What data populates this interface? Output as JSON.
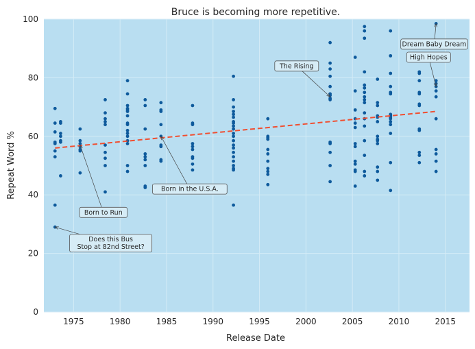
{
  "chart_data": {
    "type": "scatter",
    "title": "Bruce is becoming more repetitive.",
    "xlabel": "Release Date",
    "ylabel": "Repeat Word %",
    "xlim": [
      1971.8,
      2017.6
    ],
    "ylim": [
      0,
      100
    ],
    "xticks": [
      1975,
      1980,
      1985,
      1990,
      1995,
      2000,
      2005,
      2010,
      2015
    ],
    "yticks": [
      0,
      20,
      40,
      60,
      80,
      100
    ],
    "grid": true,
    "colors": {
      "background": "#b9def1",
      "grid": "#d4ebf6",
      "points": "#0e5a9c",
      "trend": "#f04e30"
    },
    "trend_line": {
      "x": [
        1973.0,
        2014.0
      ],
      "y": [
        56.0,
        68.5
      ],
      "style": "dashed"
    },
    "series": [
      {
        "points": [
          [
            1973.0,
            69.5
          ],
          [
            1973.0,
            64.5
          ],
          [
            1973.0,
            61.5
          ],
          [
            1973.0,
            58.0
          ],
          [
            1973.0,
            57.5
          ],
          [
            1973.0,
            55.0
          ],
          [
            1973.0,
            53.0
          ],
          [
            1973.0,
            36.5
          ],
          [
            1973.0,
            29.0
          ],
          [
            1973.6,
            65.0
          ],
          [
            1973.6,
            64.5
          ],
          [
            1973.6,
            61.0
          ],
          [
            1973.6,
            60.0
          ],
          [
            1973.6,
            58.5
          ],
          [
            1973.6,
            58.0
          ],
          [
            1973.6,
            46.5
          ],
          [
            1975.7,
            62.5
          ],
          [
            1975.7,
            58.5
          ],
          [
            1975.7,
            57.5
          ],
          [
            1975.7,
            56.5
          ],
          [
            1975.7,
            55.5
          ],
          [
            1975.7,
            55.0
          ],
          [
            1975.7,
            47.5
          ],
          [
            1978.4,
            72.5
          ],
          [
            1978.4,
            68.0
          ],
          [
            1978.4,
            66.0
          ],
          [
            1978.4,
            65.0
          ],
          [
            1978.4,
            64.0
          ],
          [
            1978.4,
            57.0
          ],
          [
            1978.4,
            54.5
          ],
          [
            1978.4,
            52.5
          ],
          [
            1978.4,
            50.0
          ],
          [
            1978.4,
            41.0
          ],
          [
            1980.8,
            79.0
          ],
          [
            1980.8,
            74.5
          ],
          [
            1980.8,
            70.5
          ],
          [
            1980.8,
            69.5
          ],
          [
            1980.8,
            69.0
          ],
          [
            1980.8,
            68.5
          ],
          [
            1980.8,
            67.0
          ],
          [
            1980.8,
            64.5
          ],
          [
            1980.8,
            64.0
          ],
          [
            1980.8,
            62.0
          ],
          [
            1980.8,
            61.0
          ],
          [
            1980.8,
            60.0
          ],
          [
            1980.8,
            58.5
          ],
          [
            1980.8,
            57.5
          ],
          [
            1980.8,
            50.0
          ],
          [
            1980.8,
            48.0
          ],
          [
            1982.7,
            72.5
          ],
          [
            1982.7,
            70.5
          ],
          [
            1982.7,
            62.5
          ],
          [
            1982.7,
            54.0
          ],
          [
            1982.7,
            53.0
          ],
          [
            1982.7,
            52.0
          ],
          [
            1982.7,
            50.0
          ],
          [
            1982.7,
            43.0
          ],
          [
            1982.7,
            42.5
          ],
          [
            1984.4,
            71.5
          ],
          [
            1984.4,
            69.0
          ],
          [
            1984.4,
            68.5
          ],
          [
            1984.4,
            64.0
          ],
          [
            1984.4,
            60.0
          ],
          [
            1984.4,
            57.0
          ],
          [
            1984.4,
            56.5
          ],
          [
            1984.4,
            52.0
          ],
          [
            1984.4,
            51.5
          ],
          [
            1987.8,
            70.5
          ],
          [
            1987.8,
            64.5
          ],
          [
            1987.8,
            64.0
          ],
          [
            1987.8,
            57.5
          ],
          [
            1987.8,
            56.5
          ],
          [
            1987.8,
            55.5
          ],
          [
            1987.8,
            53.0
          ],
          [
            1987.8,
            52.5
          ],
          [
            1987.8,
            50.5
          ],
          [
            1987.8,
            48.5
          ],
          [
            1992.2,
            80.5
          ],
          [
            1992.2,
            72.5
          ],
          [
            1992.2,
            70.0
          ],
          [
            1992.2,
            68.5
          ],
          [
            1992.2,
            67.5
          ],
          [
            1992.2,
            66.5
          ],
          [
            1992.2,
            65.0
          ],
          [
            1992.2,
            64.5
          ],
          [
            1992.2,
            63.5
          ],
          [
            1992.2,
            62.5
          ],
          [
            1992.2,
            61.0
          ],
          [
            1992.2,
            60.0
          ],
          [
            1992.2,
            58.5
          ],
          [
            1992.2,
            57.0
          ],
          [
            1992.2,
            56.0
          ],
          [
            1992.2,
            54.5
          ],
          [
            1992.2,
            53.0
          ],
          [
            1992.2,
            51.5
          ],
          [
            1992.2,
            50.0
          ],
          [
            1992.2,
            49.0
          ],
          [
            1992.2,
            48.5
          ],
          [
            1992.2,
            36.5
          ],
          [
            1995.9,
            66.0
          ],
          [
            1995.9,
            60.0
          ],
          [
            1995.9,
            59.5
          ],
          [
            1995.9,
            59.0
          ],
          [
            1995.9,
            55.5
          ],
          [
            1995.9,
            54.0
          ],
          [
            1995.9,
            51.5
          ],
          [
            1995.9,
            49.0
          ],
          [
            1995.9,
            48.0
          ],
          [
            1995.9,
            47.0
          ],
          [
            1995.9,
            43.5
          ],
          [
            2002.6,
            92.0
          ],
          [
            2002.6,
            85.0
          ],
          [
            2002.6,
            83.0
          ],
          [
            2002.6,
            80.5
          ],
          [
            2002.6,
            77.0
          ],
          [
            2002.6,
            74.5
          ],
          [
            2002.6,
            74.0
          ],
          [
            2002.6,
            73.0
          ],
          [
            2002.6,
            72.5
          ],
          [
            2002.6,
            58.0
          ],
          [
            2002.6,
            57.5
          ],
          [
            2002.6,
            54.5
          ],
          [
            2002.6,
            50.0
          ],
          [
            2002.6,
            44.5
          ],
          [
            2005.3,
            87.0
          ],
          [
            2005.3,
            75.5
          ],
          [
            2005.3,
            69.0
          ],
          [
            2005.3,
            66.0
          ],
          [
            2005.3,
            64.5
          ],
          [
            2005.3,
            63.0
          ],
          [
            2005.3,
            57.5
          ],
          [
            2005.3,
            56.5
          ],
          [
            2005.3,
            51.5
          ],
          [
            2005.3,
            50.5
          ],
          [
            2005.3,
            48.5
          ],
          [
            2005.3,
            48.0
          ],
          [
            2005.3,
            43.0
          ],
          [
            2006.3,
            97.5
          ],
          [
            2006.3,
            96.0
          ],
          [
            2006.3,
            93.5
          ],
          [
            2006.3,
            82.0
          ],
          [
            2006.3,
            77.5
          ],
          [
            2006.3,
            76.5
          ],
          [
            2006.3,
            75.0
          ],
          [
            2006.3,
            73.5
          ],
          [
            2006.3,
            72.5
          ],
          [
            2006.3,
            71.5
          ],
          [
            2006.3,
            68.0
          ],
          [
            2006.3,
            66.0
          ],
          [
            2006.3,
            63.5
          ],
          [
            2006.3,
            58.5
          ],
          [
            2006.3,
            53.5
          ],
          [
            2006.3,
            48.0
          ],
          [
            2006.3,
            46.5
          ],
          [
            2007.7,
            79.5
          ],
          [
            2007.7,
            71.5
          ],
          [
            2007.7,
            70.5
          ],
          [
            2007.7,
            67.0
          ],
          [
            2007.7,
            66.5
          ],
          [
            2007.7,
            65.0
          ],
          [
            2007.7,
            60.0
          ],
          [
            2007.7,
            59.0
          ],
          [
            2007.7,
            58.5
          ],
          [
            2007.7,
            57.5
          ],
          [
            2007.7,
            49.5
          ],
          [
            2007.7,
            48.0
          ],
          [
            2007.7,
            45.0
          ],
          [
            2009.1,
            96.0
          ],
          [
            2009.1,
            87.5
          ],
          [
            2009.1,
            81.5
          ],
          [
            2009.1,
            77.0
          ],
          [
            2009.1,
            75.0
          ],
          [
            2009.1,
            74.5
          ],
          [
            2009.1,
            67.5
          ],
          [
            2009.1,
            67.0
          ],
          [
            2009.1,
            66.5
          ],
          [
            2009.1,
            66.0
          ],
          [
            2009.1,
            65.0
          ],
          [
            2009.1,
            64.0
          ],
          [
            2009.1,
            61.0
          ],
          [
            2009.1,
            51.0
          ],
          [
            2009.1,
            41.5
          ],
          [
            2012.2,
            82.0
          ],
          [
            2012.2,
            81.5
          ],
          [
            2012.2,
            79.0
          ],
          [
            2012.2,
            75.0
          ],
          [
            2012.2,
            74.5
          ],
          [
            2012.2,
            71.0
          ],
          [
            2012.2,
            70.5
          ],
          [
            2012.2,
            62.5
          ],
          [
            2012.2,
            62.0
          ],
          [
            2012.2,
            54.5
          ],
          [
            2012.2,
            53.5
          ],
          [
            2012.2,
            51.0
          ],
          [
            2014.0,
            98.5
          ],
          [
            2014.0,
            79.0
          ],
          [
            2014.0,
            78.0
          ],
          [
            2014.0,
            77.0
          ],
          [
            2014.0,
            75.5
          ],
          [
            2014.0,
            73.5
          ],
          [
            2014.0,
            66.0
          ],
          [
            2014.0,
            55.5
          ],
          [
            2014.0,
            54.0
          ],
          [
            2014.0,
            51.5
          ],
          [
            2014.0,
            48.0
          ]
        ]
      }
    ],
    "annotations": [
      {
        "lines": [
          "The Rising"
        ],
        "point": [
          2002.6,
          73.5
        ],
        "text_at": [
          1999.0,
          84.0
        ]
      },
      {
        "lines": [
          "Dream Baby Dream"
        ],
        "point": [
          2014.0,
          98.5
        ],
        "text_at": [
          2013.8,
          91.5
        ]
      },
      {
        "lines": [
          "High Hopes"
        ],
        "point": [
          2014.0,
          77.0
        ],
        "text_at": [
          2013.2,
          87.0
        ]
      },
      {
        "lines": [
          "Born to Run"
        ],
        "point": [
          1975.7,
          57.0
        ],
        "text_at": [
          1978.2,
          34.0
        ]
      },
      {
        "lines": [
          "Born in the U.S.A."
        ],
        "point": [
          1984.4,
          60.0
        ],
        "text_at": [
          1987.5,
          42.0
        ]
      },
      {
        "lines": [
          "Does this Bus",
          "Stop at 82nd Street?"
        ],
        "point": [
          1973.0,
          29.0
        ],
        "text_at": [
          1979.0,
          23.5
        ]
      }
    ]
  }
}
